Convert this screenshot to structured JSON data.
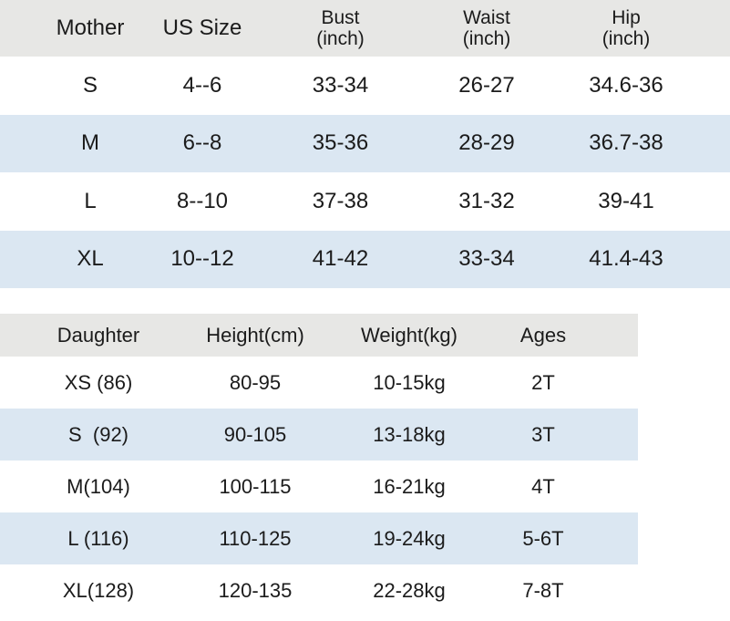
{
  "colors": {
    "header_bg": "#e7e7e5",
    "stripe_bg": "#dbe7f2",
    "text": "#1b1b1b"
  },
  "mother_table": {
    "headers": [
      {
        "line1": "Mother"
      },
      {
        "line1": "US Size"
      },
      {
        "line1": "Bust",
        "line2": "(inch)"
      },
      {
        "line1": "Waist",
        "line2": "(inch)"
      },
      {
        "line1": "Hip",
        "line2": "(inch)"
      }
    ],
    "rows": [
      [
        "S",
        "4--6",
        "33-34",
        "26-27",
        "34.6-36"
      ],
      [
        "M",
        "6--8",
        "35-36",
        "28-29",
        "36.7-38"
      ],
      [
        "L",
        "8--10",
        "37-38",
        "31-32",
        "39-41"
      ],
      [
        "XL",
        "10--12",
        "41-42",
        "33-34",
        "41.4-43"
      ]
    ]
  },
  "daughter_table": {
    "headers": [
      "Daughter",
      "Height(cm)",
      "Weight(kg)",
      "Ages"
    ],
    "rows": [
      [
        "XS (86)",
        "80-95",
        "10-15kg",
        "2T"
      ],
      [
        "S  (92)",
        "90-105",
        "13-18kg",
        "3T"
      ],
      [
        "M(104)",
        "100-115",
        "16-21kg",
        "4T"
      ],
      [
        "L (116)",
        "110-125",
        "19-24kg",
        "5-6T"
      ],
      [
        "XL(128)",
        "120-135",
        "22-28kg",
        "7-8T"
      ]
    ]
  },
  "chart_data": [
    {
      "type": "table",
      "title": "Mother size chart",
      "columns": [
        "Mother",
        "US Size",
        "Bust (inch)",
        "Waist (inch)",
        "Hip (inch)"
      ],
      "rows": [
        [
          "S",
          "4--6",
          "33-34",
          "26-27",
          "34.6-36"
        ],
        [
          "M",
          "6--8",
          "35-36",
          "28-29",
          "36.7-38"
        ],
        [
          "L",
          "8--10",
          "37-38",
          "31-32",
          "39-41"
        ],
        [
          "XL",
          "10--12",
          "41-42",
          "33-34",
          "41.4-43"
        ]
      ]
    },
    {
      "type": "table",
      "title": "Daughter size chart",
      "columns": [
        "Daughter",
        "Height(cm)",
        "Weight(kg)",
        "Ages"
      ],
      "rows": [
        [
          "XS (86)",
          "80-95",
          "10-15kg",
          "2T"
        ],
        [
          "S  (92)",
          "90-105",
          "13-18kg",
          "3T"
        ],
        [
          "M(104)",
          "100-115",
          "16-21kg",
          "4T"
        ],
        [
          "L (116)",
          "110-125",
          "19-24kg",
          "5-6T"
        ],
        [
          "XL(128)",
          "120-135",
          "22-28kg",
          "7-8T"
        ]
      ]
    }
  ]
}
